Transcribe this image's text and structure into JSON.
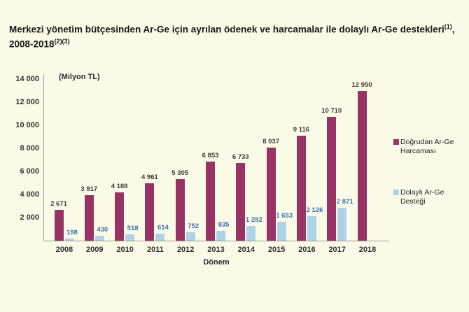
{
  "title": {
    "main": "Merkezi yönetim bütçesinden Ar-Ge için ayrılan ödenek ve harcamalar ile dolaylı Ar-Ge destekleri",
    "sup1": "(1)",
    "mid": ", 2008-2018",
    "sup2": "(2)(3)"
  },
  "chart_data": {
    "type": "bar",
    "unit_label": "(Milyon TL)",
    "xlabel": "Dönem",
    "categories": [
      "2008",
      "2009",
      "2010",
      "2011",
      "2012",
      "2013",
      "2014",
      "2015",
      "2016",
      "2017",
      "2018"
    ],
    "series": [
      {
        "name": "Doğrudan Ar-Ge Harcaması",
        "color": "#993366",
        "label_color": "#473a3a",
        "values": [
          2671,
          3917,
          4188,
          4961,
          5305,
          6853,
          6733,
          8037,
          9116,
          10710,
          12950
        ]
      },
      {
        "name": "Dolaylı Ar-Ge Desteği",
        "color": "#aed2e6",
        "label_color": "#3e6fb0",
        "values": [
          198,
          430,
          518,
          614,
          752,
          835,
          1282,
          1653,
          2126,
          2871,
          null
        ]
      }
    ],
    "ylim": [
      0,
      14000
    ],
    "ytick_step": 2000,
    "grid": false,
    "legend_position": "right"
  },
  "colors": {
    "background": "#fafbe6",
    "axis": "#9a9a8f"
  }
}
